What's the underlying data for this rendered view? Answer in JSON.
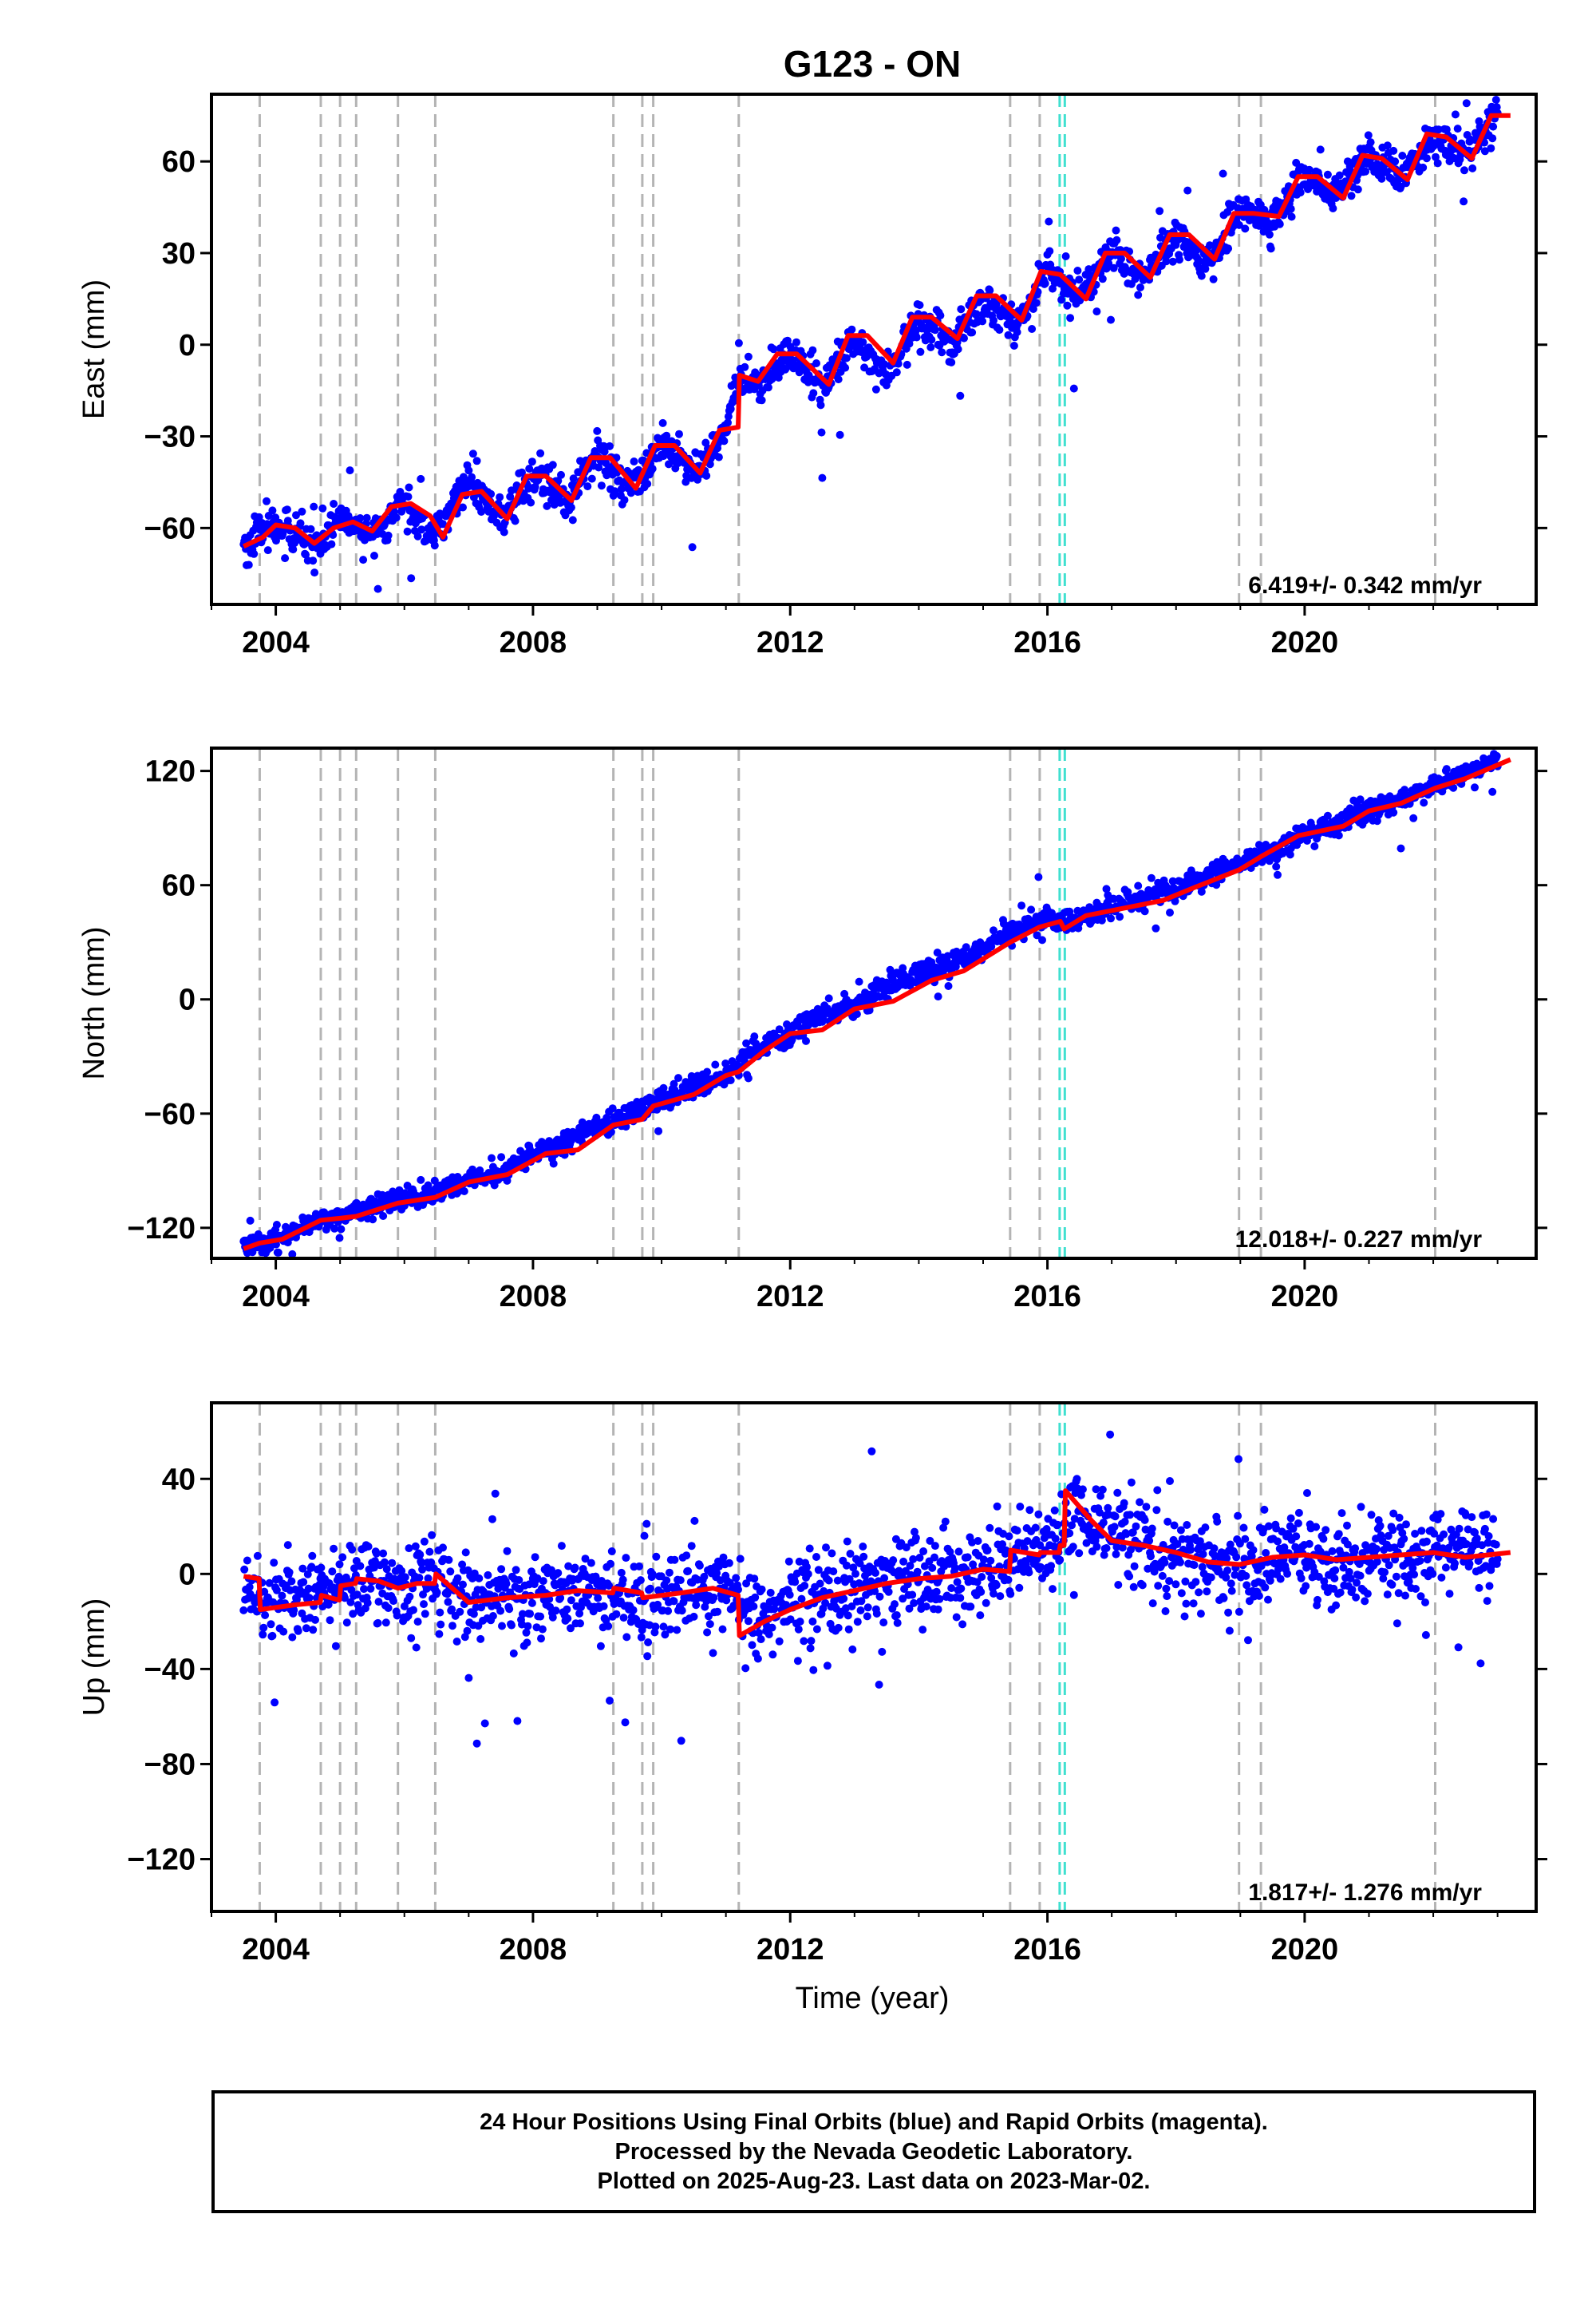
{
  "title": "G123 - ON",
  "colors": {
    "data_points": "#0000ff",
    "model_line": "#ff0000",
    "event_line": "#b4b4b4",
    "equipment_line": "#40e0d0",
    "frame": "#000000"
  },
  "x_axis": {
    "label": "Time (year)",
    "ticks": [
      2004,
      2008,
      2012,
      2016,
      2020
    ],
    "range": [
      2003.0,
      2023.6
    ]
  },
  "event_lines": [
    2003.75,
    2004.7,
    2005.0,
    2005.25,
    2005.9,
    2006.48,
    2009.25,
    2009.7,
    2009.87,
    2011.2,
    2015.42,
    2015.88,
    2018.98,
    2019.32,
    2022.03
  ],
  "equipment_lines": [
    2016.19,
    2016.27
  ],
  "chart_data": [
    {
      "type": "scatter",
      "component": "East",
      "ylabel": "East (mm)",
      "ylim": [
        -85,
        82
      ],
      "yticks": [
        -60,
        -30,
        0,
        30,
        60
      ],
      "rate": "6.419+/- 0.342 mm/yr",
      "series": [
        {
          "name": "",
          "style": "points",
          "x": [
            2003.5,
            2004.0,
            2004.5,
            2005.0,
            2005.5,
            2006.0,
            2006.5,
            2007.0,
            2007.5,
            2008.0,
            2008.5,
            2009.0,
            2009.5,
            2010.0,
            2010.5,
            2011.0,
            2011.2,
            2011.5,
            2012.0,
            2012.5,
            2013.0,
            2013.5,
            2014.0,
            2014.5,
            2015.0,
            2015.5,
            2016.0,
            2016.5,
            2017.0,
            2017.5,
            2018.0,
            2018.5,
            2019.0,
            2019.5,
            2020.0,
            2020.5,
            2021.0,
            2021.5,
            2022.0,
            2022.5,
            2023.0
          ],
          "y": [
            -66,
            -59,
            -65,
            -57,
            -62,
            -52,
            -62,
            -44,
            -58,
            -42,
            -52,
            -36,
            -47,
            -33,
            -42,
            -28,
            -10,
            -14,
            -3,
            -14,
            3,
            -10,
            8,
            0,
            15,
            6,
            24,
            16,
            30,
            22,
            36,
            26,
            45,
            40,
            56,
            50,
            62,
            55,
            68,
            62,
            75
          ]
        },
        {
          "name": "",
          "style": "line",
          "x": [
            2003.5,
            2003.8,
            2004.0,
            2004.3,
            2004.6,
            2004.9,
            2005.2,
            2005.5,
            2005.8,
            2006.1,
            2006.4,
            2006.6,
            2006.9,
            2007.2,
            2007.6,
            2007.9,
            2008.2,
            2008.6,
            2008.9,
            2009.2,
            2009.6,
            2009.9,
            2010.2,
            2010.6,
            2010.9,
            2011.19,
            2011.21,
            2011.5,
            2011.8,
            2012.1,
            2012.6,
            2012.9,
            2013.2,
            2013.6,
            2013.9,
            2014.2,
            2014.6,
            2014.9,
            2015.2,
            2015.6,
            2015.9,
            2016.2,
            2016.6,
            2016.9,
            2017.2,
            2017.6,
            2017.9,
            2018.2,
            2018.6,
            2018.9,
            2019.2,
            2019.6,
            2019.9,
            2020.2,
            2020.6,
            2020.9,
            2021.2,
            2021.6,
            2021.9,
            2022.2,
            2022.6,
            2022.9,
            2023.2
          ],
          "y": [
            -66,
            -63,
            -59,
            -60,
            -65,
            -60,
            -58,
            -61,
            -53,
            -52,
            -56,
            -63,
            -49,
            -48,
            -57,
            -43,
            -43,
            -51,
            -37,
            -37,
            -47,
            -33,
            -33,
            -42,
            -28,
            -27,
            -10,
            -12,
            -3,
            -3,
            -13,
            3,
            3,
            -6,
            9,
            9,
            2,
            16,
            16,
            8,
            24,
            23,
            15,
            30,
            30,
            22,
            36,
            36,
            28,
            43,
            43,
            42,
            55,
            55,
            48,
            62,
            61,
            54,
            69,
            68,
            61,
            75,
            75
          ]
        }
      ]
    },
    {
      "type": "scatter",
      "component": "North",
      "ylabel": "North (mm)",
      "ylim": [
        -136,
        132
      ],
      "yticks": [
        -120,
        -60,
        0,
        60,
        120
      ],
      "rate": "12.018+/- 0.227 mm/yr",
      "series": [
        {
          "name": "",
          "style": "points",
          "x": [
            2003.5,
            2004.0,
            2004.5,
            2005.0,
            2005.5,
            2006.0,
            2006.5,
            2007.0,
            2007.5,
            2008.0,
            2008.5,
            2009.0,
            2009.5,
            2010.0,
            2010.5,
            2011.0,
            2011.5,
            2012.0,
            2012.5,
            2013.0,
            2013.5,
            2014.0,
            2014.5,
            2015.0,
            2015.5,
            2016.0,
            2016.5,
            2017.0,
            2017.5,
            2018.0,
            2018.5,
            2019.0,
            2019.5,
            2020.0,
            2020.5,
            2021.0,
            2021.5,
            2022.0,
            2022.5,
            2023.0
          ],
          "y": [
            -130,
            -126,
            -118,
            -114,
            -108,
            -105,
            -101,
            -95,
            -90,
            -81,
            -75,
            -66,
            -60,
            -53,
            -45,
            -40,
            -25,
            -18,
            -8,
            -4,
            6,
            13,
            18,
            28,
            36,
            42,
            42,
            48,
            55,
            57,
            65,
            72,
            78,
            88,
            92,
            100,
            104,
            112,
            118,
            127
          ]
        },
        {
          "name": "",
          "style": "line",
          "x": [
            2003.5,
            2003.75,
            2004.1,
            2004.7,
            2005.0,
            2005.25,
            2005.9,
            2006.48,
            2007.0,
            2007.6,
            2008.2,
            2008.7,
            2009.25,
            2009.7,
            2009.87,
            2010.5,
            2011.0,
            2011.2,
            2011.6,
            2012.0,
            2012.5,
            2013.0,
            2013.6,
            2014.2,
            2014.7,
            2015.42,
            2015.88,
            2016.2,
            2016.26,
            2016.6,
            2017.2,
            2017.8,
            2018.3,
            2018.98,
            2019.32,
            2019.9,
            2020.6,
            2021.0,
            2021.5,
            2022.03,
            2022.5,
            2023.2
          ],
          "y": [
            -131,
            -128,
            -126,
            -116,
            -115,
            -114,
            -107,
            -104,
            -96,
            -92,
            -81,
            -79,
            -66,
            -63,
            -56,
            -50,
            -40,
            -38,
            -27,
            -18,
            -16,
            -5,
            -1,
            10,
            15,
            30,
            38,
            41,
            37,
            44,
            48,
            52,
            59,
            68,
            75,
            86,
            91,
            99,
            103,
            111,
            116,
            126
          ]
        }
      ]
    },
    {
      "type": "scatter",
      "component": "Up",
      "ylabel": "Up (mm)",
      "ylim": [
        -142,
        72
      ],
      "yticks": [
        -120,
        -80,
        -40,
        0,
        40
      ],
      "rate": "1.817+/- 1.276 mm/yr",
      "series": [
        {
          "name": "",
          "style": "points",
          "x": [
            2003.5,
            2004.0,
            2004.5,
            2005.0,
            2005.5,
            2006.0,
            2006.5,
            2007.0,
            2007.5,
            2008.0,
            2008.5,
            2009.0,
            2009.5,
            2010.0,
            2010.5,
            2011.0,
            2011.5,
            2012.0,
            2012.5,
            2013.0,
            2013.5,
            2014.0,
            2014.5,
            2015.0,
            2015.5,
            2016.0,
            2016.5,
            2017.0,
            2017.5,
            2018.0,
            2018.5,
            2019.0,
            2019.5,
            2020.0,
            2020.5,
            2021.0,
            2021.5,
            2022.0,
            2022.5,
            2023.0
          ],
          "y": [
            -5,
            -12,
            -9,
            -4,
            -3,
            -5,
            -2,
            -12,
            -10,
            -9,
            -8,
            -8,
            -10,
            -9,
            -7,
            -8,
            -20,
            -13,
            -8,
            -6,
            -2,
            -3,
            0,
            2,
            8,
            10,
            28,
            18,
            12,
            8,
            5,
            4,
            6,
            7,
            6,
            8,
            7,
            8,
            10,
            9
          ]
        },
        {
          "name": "",
          "style": "line",
          "x": [
            2003.5,
            2003.74,
            2003.76,
            2004.3,
            2004.69,
            2004.71,
            2004.99,
            2005.01,
            2005.24,
            2005.26,
            2005.6,
            2005.9,
            2006.2,
            2006.47,
            2006.49,
            2007.0,
            2007.6,
            2008.2,
            2008.7,
            2009.24,
            2009.26,
            2009.69,
            2009.71,
            2010.3,
            2010.8,
            2011.19,
            2011.21,
            2011.6,
            2012.0,
            2012.5,
            2013.0,
            2013.5,
            2014.0,
            2014.5,
            2015.0,
            2015.41,
            2015.43,
            2015.87,
            2015.89,
            2016.18,
            2016.2,
            2016.26,
            2016.28,
            2016.7,
            2017.0,
            2017.5,
            2018.0,
            2018.5,
            2018.97,
            2018.99,
            2019.5,
            2020.0,
            2020.5,
            2021.0,
            2021.5,
            2022.0,
            2022.5,
            2023.2
          ],
          "y": [
            -1,
            -2,
            -15,
            -13,
            -12,
            -9,
            -11,
            -5,
            -4,
            -2,
            -3,
            -6,
            -4,
            -4,
            0,
            -12,
            -10,
            -9,
            -7,
            -8,
            -6,
            -8,
            -10,
            -8,
            -6,
            -9,
            -26,
            -20,
            -15,
            -10,
            -7,
            -4,
            -2,
            -1,
            2,
            1,
            10,
            8,
            9,
            9,
            12,
            12,
            35,
            22,
            14,
            12,
            9,
            5,
            4,
            4,
            7,
            8,
            6,
            7,
            8,
            9,
            7,
            9
          ]
        }
      ]
    }
  ],
  "caption": {
    "line1": "24 Hour Positions Using Final Orbits (blue) and Rapid Orbits (magenta).",
    "line2": "Processed by the Nevada Geodetic Laboratory.",
    "line3": "Plotted on 2025-Aug-23. Last data on 2023-Mar-02."
  }
}
